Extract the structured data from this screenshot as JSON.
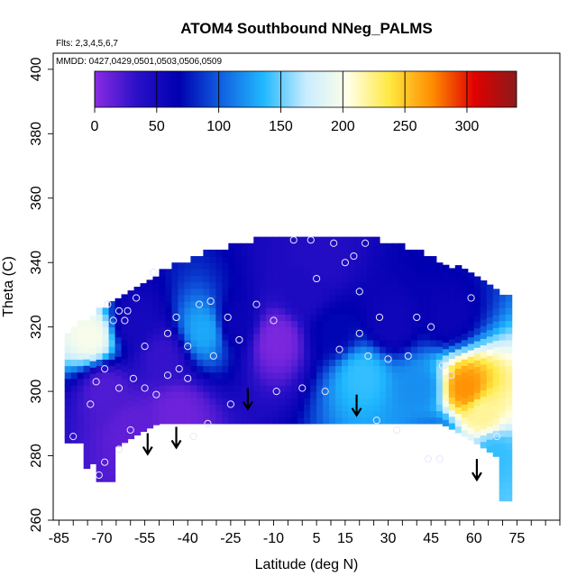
{
  "chart_data": {
    "type": "heatmap",
    "title": "ATOM4 Southbound NNeg_PALMS",
    "subtitle_flights": "Flts: 2,3,4,5,6,7",
    "subtitle_dates": "MMDD: 0427,0429,0501,0503,0506,0509",
    "xlabel": "Latitude (deg N)",
    "ylabel": "Theta (C)",
    "xlim": [
      -87,
      90
    ],
    "ylim": [
      260,
      405
    ],
    "x_tick_labels": [
      "-85",
      "-70",
      "-55",
      "-40",
      "-25",
      "-10",
      "5",
      "15",
      "30",
      "45",
      "60",
      "75"
    ],
    "x_tick_values": [
      -85,
      -70,
      -55,
      -40,
      -25,
      -10,
      5,
      15,
      30,
      45,
      60,
      75
    ],
    "y_tick_labels": [
      "260",
      "280",
      "300",
      "320",
      "340",
      "360",
      "380",
      "400"
    ],
    "y_tick_values": [
      260,
      280,
      300,
      320,
      340,
      360,
      380,
      400
    ],
    "colorbar": {
      "range": [
        0,
        340
      ],
      "tick_labels": [
        "0",
        "50",
        "100",
        "150",
        "200",
        "250",
        "300"
      ],
      "tick_values": [
        0,
        50,
        100,
        150,
        200,
        250,
        300
      ],
      "colors": [
        "#8a2be2",
        "#2a10c8",
        "#0000b0",
        "#1060e0",
        "#20b8ff",
        "#c8ecff",
        "#ffffe8",
        "#ffe840",
        "#ff8c00",
        "#e00000",
        "#8b1a1a"
      ]
    },
    "arrows": [
      {
        "lat": -54,
        "theta": 287
      },
      {
        "lat": -44,
        "theta": 289
      },
      {
        "lat": -19,
        "theta": 301
      },
      {
        "lat": 19,
        "theta": 299
      },
      {
        "lat": 61,
        "theta": 279
      }
    ],
    "points": [
      {
        "lat": -68,
        "theta": 327
      },
      {
        "lat": -66,
        "theta": 322
      },
      {
        "lat": -64,
        "theta": 325
      },
      {
        "lat": -62,
        "theta": 322
      },
      {
        "lat": -58,
        "theta": 329
      },
      {
        "lat": -52,
        "theta": 337
      },
      {
        "lat": -47,
        "theta": 318
      },
      {
        "lat": -44,
        "theta": 323
      },
      {
        "lat": -40,
        "theta": 314
      },
      {
        "lat": -36,
        "theta": 327
      },
      {
        "lat": -32,
        "theta": 328
      },
      {
        "lat": -31,
        "theta": 311
      },
      {
        "lat": -26,
        "theta": 323
      },
      {
        "lat": -25,
        "theta": 296
      },
      {
        "lat": -22,
        "theta": 316
      },
      {
        "lat": -16,
        "theta": 327
      },
      {
        "lat": -9,
        "theta": 300
      },
      {
        "lat": -3,
        "theta": 347
      },
      {
        "lat": 3,
        "theta": 347
      },
      {
        "lat": 5,
        "theta": 335
      },
      {
        "lat": 11,
        "theta": 346
      },
      {
        "lat": 15,
        "theta": 340
      },
      {
        "lat": 18,
        "theta": 342
      },
      {
        "lat": 22,
        "theta": 346
      },
      {
        "lat": 20,
        "theta": 331
      },
      {
        "lat": 23,
        "theta": 311
      },
      {
        "lat": 27,
        "theta": 323
      },
      {
        "lat": 30,
        "theta": 310
      },
      {
        "lat": 37,
        "theta": 311
      },
      {
        "lat": 40,
        "theta": 323
      },
      {
        "lat": 45,
        "theta": 320
      },
      {
        "lat": 49,
        "theta": 308
      },
      {
        "lat": 52,
        "theta": 305
      },
      {
        "lat": 59,
        "theta": 329
      },
      {
        "lat": 68,
        "theta": 286
      },
      {
        "lat": -80,
        "theta": 286
      },
      {
        "lat": -74,
        "theta": 296
      },
      {
        "lat": -72,
        "theta": 303
      },
      {
        "lat": -69,
        "theta": 307
      },
      {
        "lat": -64,
        "theta": 301
      },
      {
        "lat": -59,
        "theta": 304
      },
      {
        "lat": -55,
        "theta": 301
      },
      {
        "lat": -51,
        "theta": 299
      },
      {
        "lat": -47,
        "theta": 305
      },
      {
        "lat": -60,
        "theta": 288
      },
      {
        "lat": -64,
        "theta": 282
      },
      {
        "lat": -69,
        "theta": 278
      },
      {
        "lat": -71,
        "theta": 274
      },
      {
        "lat": -38,
        "theta": 286
      },
      {
        "lat": -33,
        "theta": 290
      },
      {
        "lat": 0,
        "theta": 301
      },
      {
        "lat": 8,
        "theta": 300
      },
      {
        "lat": 26,
        "theta": 291
      },
      {
        "lat": 33,
        "theta": 288
      },
      {
        "lat": 44,
        "theta": 279
      },
      {
        "lat": 48,
        "theta": 279
      },
      {
        "lat": 20,
        "theta": 318
      },
      {
        "lat": 13,
        "theta": 313
      },
      {
        "lat": -10,
        "theta": 322
      },
      {
        "lat": -55,
        "theta": 314
      },
      {
        "lat": -61,
        "theta": 325
      },
      {
        "lat": -43,
        "theta": 307
      },
      {
        "lat": -40,
        "theta": 304
      }
    ],
    "regions": [
      {
        "lat": -70,
        "theta": 300,
        "value": 20
      },
      {
        "lat": -60,
        "theta": 320,
        "value": 50
      },
      {
        "lat": -75,
        "theta": 316,
        "value": 200
      },
      {
        "lat": -50,
        "theta": 310,
        "value": 30
      },
      {
        "lat": -35,
        "theta": 318,
        "value": 130
      },
      {
        "lat": -25,
        "theta": 320,
        "value": 60
      },
      {
        "lat": -10,
        "theta": 315,
        "value": 5
      },
      {
        "lat": 0,
        "theta": 330,
        "value": 45
      },
      {
        "lat": 10,
        "theta": 318,
        "value": 70
      },
      {
        "lat": 20,
        "theta": 304,
        "value": 140
      },
      {
        "lat": 30,
        "theta": 320,
        "value": 55
      },
      {
        "lat": 40,
        "theta": 300,
        "value": 120
      },
      {
        "lat": 50,
        "theta": 322,
        "value": 60
      },
      {
        "lat": 56,
        "theta": 300,
        "value": 270
      },
      {
        "lat": 62,
        "theta": 292,
        "value": 220
      },
      {
        "lat": 66,
        "theta": 280,
        "value": 140
      },
      {
        "lat": -60,
        "theta": 287,
        "value": 15
      },
      {
        "lat": -45,
        "theta": 292,
        "value": 10
      },
      {
        "lat": 5,
        "theta": 340,
        "value": 40
      },
      {
        "lat": 45,
        "theta": 285,
        "value": 110
      }
    ]
  }
}
